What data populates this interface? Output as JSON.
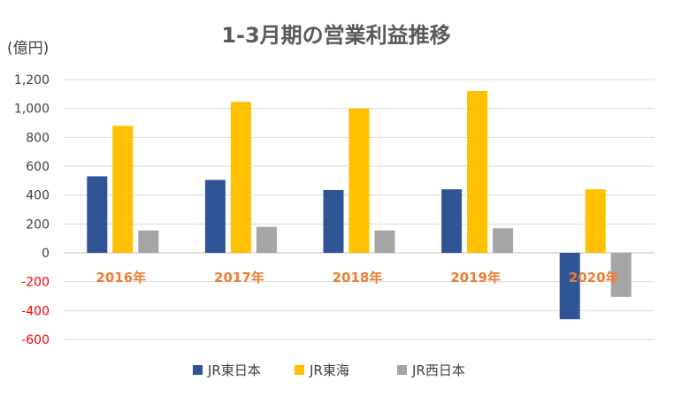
{
  "chart_data": {
    "type": "bar",
    "title": "1-3月期の営業利益推移",
    "ylabel": "(億円)",
    "xlabel": "",
    "ylim": [
      -600,
      1200
    ],
    "yticks": [
      1200,
      1000,
      800,
      600,
      400,
      200,
      0,
      -200,
      -400,
      -600
    ],
    "ytick_labels": [
      "1,200",
      "1,000",
      "800",
      "600",
      "400",
      "200",
      "0",
      "-200",
      "-400",
      "-600"
    ],
    "categories": [
      "2016年",
      "2017年",
      "2018年",
      "2019年",
      "2020年"
    ],
    "series": [
      {
        "name": "JR東日本",
        "values": [
          530,
          505,
          435,
          440,
          -460
        ],
        "color": "#2F5597"
      },
      {
        "name": "JR東海",
        "values": [
          880,
          1045,
          1000,
          1120,
          440
        ],
        "color": "#FFC000"
      },
      {
        "name": "JR西日本",
        "values": [
          155,
          180,
          155,
          170,
          -305
        ],
        "color": "#A5A5A5"
      }
    ],
    "grid": true,
    "legend_position": "bottom",
    "colors": {
      "positive_tick": "#404040",
      "negative_tick": "#FF0000",
      "category_label": "#ED7D31",
      "gridline": "#D9D9D9"
    }
  }
}
